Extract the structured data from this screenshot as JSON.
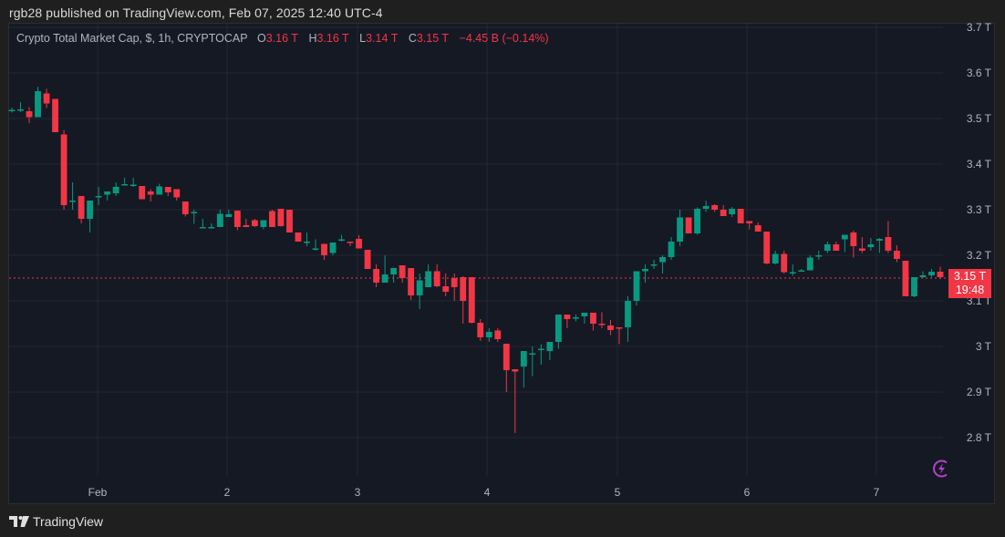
{
  "header": {
    "published": "rgb28 published on TradingView.com, Feb 07, 2025 12:40 UTC-4"
  },
  "legend": {
    "symbol": "Crypto Total Market Cap, $, 1h, CRYPTOCAP",
    "o_label": "O",
    "o_value": "3.16 T",
    "h_label": "H",
    "h_value": "3.16 T",
    "l_label": "L",
    "l_value": "3.14 T",
    "c_label": "C",
    "c_value": "3.15 T",
    "change": "−4.45 B (−0.14%)"
  },
  "price_tag": {
    "price": "3.15 T",
    "countdown": "19:48"
  },
  "footer": {
    "brand": "TradingView"
  },
  "colors": {
    "up": "#089981",
    "down": "#f23645",
    "bg": "#151924",
    "grid": "#242833",
    "text": "#b2b5be",
    "bolt": "#b543c9"
  },
  "chart_data": {
    "type": "candlestick",
    "title": "Crypto Total Market Cap, $, 1h, CRYPTOCAP",
    "xlabel": "",
    "ylabel": "",
    "ylim": [
      2.75,
      3.71
    ],
    "y_ticks": [
      "3.7 T",
      "3.6 T",
      "3.5 T",
      "3.4 T",
      "3.3 T",
      "3.2 T",
      "3.1 T",
      "3 T",
      "2.9 T",
      "2.8 T"
    ],
    "x_ticks": [
      "Feb",
      "2",
      "3",
      "4",
      "5",
      "6",
      "7"
    ],
    "last_price": 3.15,
    "grid": true,
    "candles_note": "approx hourly OHLC [open, high, low, close] in trillions, read from pixels",
    "candles": [
      [
        3.519,
        3.524,
        3.513,
        3.519
      ],
      [
        3.519,
        3.536,
        3.514,
        3.52
      ],
      [
        3.516,
        3.525,
        3.49,
        3.503
      ],
      [
        3.503,
        3.57,
        3.503,
        3.56
      ],
      [
        3.555,
        3.565,
        3.523,
        3.533
      ],
      [
        3.543,
        3.543,
        3.47,
        3.47
      ],
      [
        3.465,
        3.475,
        3.3,
        3.31
      ],
      [
        3.32,
        3.36,
        3.3,
        3.32
      ],
      [
        3.33,
        3.33,
        3.27,
        3.28
      ],
      [
        3.28,
        3.32,
        3.25,
        3.32
      ],
      [
        3.33,
        3.35,
        3.31,
        3.33
      ],
      [
        3.333,
        3.34,
        3.32,
        3.34
      ],
      [
        3.336,
        3.36,
        3.33,
        3.35
      ],
      [
        3.356,
        3.37,
        3.355,
        3.356
      ],
      [
        3.355,
        3.37,
        3.35,
        3.355
      ],
      [
        3.352,
        3.35,
        3.34,
        3.323
      ],
      [
        3.34,
        3.345,
        3.318,
        3.333
      ],
      [
        3.333,
        3.357,
        3.333,
        3.351
      ],
      [
        3.35,
        3.35,
        3.33,
        3.338
      ],
      [
        3.345,
        3.345,
        3.32,
        3.327
      ],
      [
        3.318,
        3.318,
        3.285,
        3.29
      ],
      [
        3.292,
        3.3,
        3.269,
        3.295
      ],
      [
        3.262,
        3.28,
        3.262,
        3.262
      ],
      [
        3.262,
        3.27,
        3.262,
        3.262
      ],
      [
        3.262,
        3.3,
        3.262,
        3.291
      ],
      [
        3.284,
        3.3,
        3.284,
        3.29
      ],
      [
        3.298,
        3.298,
        3.255,
        3.262
      ],
      [
        3.266,
        3.28,
        3.262,
        3.262
      ],
      [
        3.277,
        3.28,
        3.262,
        3.264
      ],
      [
        3.262,
        3.274,
        3.257,
        3.277
      ],
      [
        3.297,
        3.3,
        3.262,
        3.262
      ],
      [
        3.302,
        3.302,
        3.263,
        3.264
      ],
      [
        3.3,
        3.3,
        3.25,
        3.25
      ],
      [
        3.25,
        3.25,
        3.23,
        3.23
      ],
      [
        3.23,
        3.25,
        3.22,
        3.23
      ],
      [
        3.215,
        3.235,
        3.21,
        3.215
      ],
      [
        3.225,
        3.225,
        3.19,
        3.2
      ],
      [
        3.205,
        3.225,
        3.2,
        3.228
      ],
      [
        3.235,
        3.245,
        3.23,
        3.235
      ],
      [
        3.23,
        3.23,
        3.22,
        3.228
      ],
      [
        3.236,
        3.244,
        3.22,
        3.215
      ],
      [
        3.212,
        3.212,
        3.17,
        3.17
      ],
      [
        3.17,
        3.18,
        3.13,
        3.14
      ],
      [
        3.14,
        3.2,
        3.14,
        3.158
      ],
      [
        3.158,
        3.17,
        3.14,
        3.172
      ],
      [
        3.178,
        3.178,
        3.14,
        3.15
      ],
      [
        3.172,
        3.17,
        3.102,
        3.112
      ],
      [
        3.112,
        3.16,
        3.082,
        3.145
      ],
      [
        3.13,
        3.18,
        3.13,
        3.165
      ],
      [
        3.165,
        3.18,
        3.13,
        3.132
      ],
      [
        3.132,
        3.16,
        3.11,
        3.12
      ],
      [
        3.15,
        3.16,
        3.1,
        3.13
      ],
      [
        3.152,
        3.154,
        3.05,
        3.1
      ],
      [
        3.152,
        3.152,
        3.05,
        3.052
      ],
      [
        3.052,
        3.06,
        3.012,
        3.02
      ],
      [
        3.02,
        3.04,
        3.01,
        3.032
      ],
      [
        3.035,
        3.04,
        3.01,
        3.016
      ],
      [
        3.006,
        3.006,
        2.9,
        2.948
      ],
      [
        2.95,
        2.95,
        2.81,
        2.945
      ],
      [
        2.956,
        2.98,
        2.91,
        2.99
      ],
      [
        2.985,
        3.0,
        2.935,
        2.985
      ],
      [
        2.993,
        3.005,
        2.96,
        2.995
      ],
      [
        2.99,
        3.01,
        2.97,
        3.01
      ],
      [
        3.01,
        3.07,
        2.995,
        3.07
      ],
      [
        3.07,
        3.07,
        3.04,
        3.06
      ],
      [
        3.063,
        3.07,
        3.055,
        3.064
      ],
      [
        3.066,
        3.074,
        3.05,
        3.074
      ],
      [
        3.074,
        3.074,
        3.035,
        3.05
      ],
      [
        3.05,
        3.075,
        3.04,
        3.047
      ],
      [
        3.046,
        3.058,
        3.025,
        3.036
      ],
      [
        3.042,
        3.042,
        3.005,
        3.04
      ],
      [
        3.042,
        3.11,
        3.01,
        3.1
      ],
      [
        3.1,
        3.165,
        3.09,
        3.165
      ],
      [
        3.165,
        3.18,
        3.14,
        3.17
      ],
      [
        3.178,
        3.19,
        3.17,
        3.18
      ],
      [
        3.185,
        3.2,
        3.16,
        3.196
      ],
      [
        3.196,
        3.24,
        3.19,
        3.23
      ],
      [
        3.23,
        3.3,
        3.22,
        3.283
      ],
      [
        3.283,
        3.283,
        3.248,
        3.248
      ],
      [
        3.248,
        3.305,
        3.245,
        3.302
      ],
      [
        3.302,
        3.32,
        3.295,
        3.308
      ],
      [
        3.31,
        3.312,
        3.295,
        3.3
      ],
      [
        3.3,
        3.31,
        3.286,
        3.286
      ],
      [
        3.29,
        3.306,
        3.284,
        3.302
      ],
      [
        3.302,
        3.302,
        3.27,
        3.27
      ],
      [
        3.275,
        3.275,
        3.257,
        3.27
      ],
      [
        3.266,
        3.272,
        3.252,
        3.252
      ],
      [
        3.252,
        3.252,
        3.18,
        3.182
      ],
      [
        3.182,
        3.21,
        3.18,
        3.203
      ],
      [
        3.203,
        3.21,
        3.16,
        3.163
      ],
      [
        3.163,
        3.18,
        3.155,
        3.163
      ],
      [
        3.165,
        3.17,
        3.165,
        3.167
      ],
      [
        3.167,
        3.2,
        3.167,
        3.195
      ],
      [
        3.198,
        3.21,
        3.19,
        3.2
      ],
      [
        3.21,
        3.23,
        3.205,
        3.224
      ],
      [
        3.224,
        3.23,
        3.215,
        3.21
      ],
      [
        3.235,
        3.24,
        3.207,
        3.245
      ],
      [
        3.25,
        3.254,
        3.195,
        3.22
      ],
      [
        3.215,
        3.24,
        3.205,
        3.21
      ],
      [
        3.218,
        3.238,
        3.21,
        3.224
      ],
      [
        3.232,
        3.238,
        3.205,
        3.236
      ],
      [
        3.24,
        3.275,
        3.205,
        3.21
      ],
      [
        3.21,
        3.222,
        3.185,
        3.192
      ],
      [
        3.188,
        3.186,
        3.12,
        3.11
      ],
      [
        3.11,
        3.12,
        3.108,
        3.152
      ],
      [
        3.152,
        3.165,
        3.15,
        3.156
      ],
      [
        3.156,
        3.17,
        3.152,
        3.164
      ],
      [
        3.164,
        3.175,
        3.148,
        3.152
      ]
    ]
  }
}
